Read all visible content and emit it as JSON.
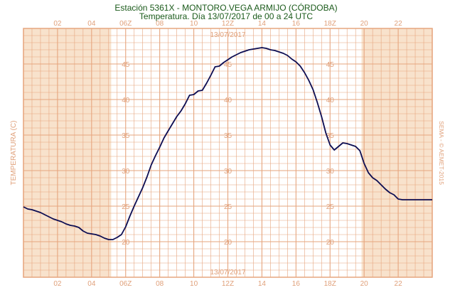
{
  "chart_data": {
    "type": "line",
    "title": "Estación 5361X - MONTORO.VEGA ARMIJO (CÓRDOBA)",
    "subtitle": "Temperatura. Día 13/07/2017 de 00 a 24 UTC",
    "ylabel": "TEMPERATURA (C)",
    "xlabel": "",
    "credit": "SEMA - © AEMET-2015",
    "date_label": "13/07/2017",
    "xlim": [
      0,
      24
    ],
    "ylim": [
      15,
      50
    ],
    "x_ticks": [
      2,
      4,
      6,
      8,
      10,
      12,
      14,
      16,
      18,
      20,
      22
    ],
    "x_tick_labels": [
      "02",
      "04",
      "06Z",
      "08",
      "10",
      "12Z",
      "14",
      "16",
      "18Z",
      "20",
      "22"
    ],
    "y_ticks": [
      20,
      25,
      30,
      35,
      40,
      45
    ],
    "y_tick_labels": [
      "20",
      "25",
      "30",
      "35",
      "40",
      "45"
    ],
    "y_label_columns_x": [
      6,
      12,
      18
    ],
    "night_bands": [
      [
        0,
        5.15
      ],
      [
        19.85,
        24
      ]
    ],
    "grid": true,
    "colors": {
      "series": "#0d0d52",
      "night_band": "#f8e2cc",
      "grid": "#e6a57e",
      "frame": "#e6a57e",
      "title": "#1a5a1a",
      "labels": "#e0a07a"
    },
    "series": [
      {
        "x": [
          0,
          0.25,
          0.5,
          0.75,
          1,
          1.25,
          1.5,
          1.75,
          2,
          2.25,
          2.5,
          2.75,
          3,
          3.25,
          3.5,
          3.75,
          4,
          4.25,
          4.5,
          4.75,
          5,
          5.25,
          5.5,
          5.75,
          6,
          6.25,
          6.5,
          6.75,
          7,
          7.25,
          7.5,
          7.75,
          8,
          8.25,
          8.5,
          8.75,
          9,
          9.25,
          9.5,
          9.75,
          10,
          10.25,
          10.5,
          10.75,
          11,
          11.25,
          11.5,
          11.75,
          12,
          12.25,
          12.5,
          12.75,
          13,
          13.25,
          13.5,
          13.75,
          14,
          14.25,
          14.5,
          14.75,
          15,
          15.25,
          15.5,
          15.75,
          16,
          16.25,
          16.5,
          16.75,
          17,
          17.25,
          17.5,
          17.75,
          18,
          18.25,
          18.5,
          18.75,
          19,
          19.25,
          19.5,
          19.75,
          20,
          20.25,
          20.5,
          20.75,
          21,
          21.25,
          21.5,
          21.75,
          22,
          22.25,
          22.5,
          22.75,
          23,
          23.25,
          23.5,
          23.75,
          24
        ],
        "values": [
          24.9,
          24.6,
          24.5,
          24.3,
          24.1,
          23.8,
          23.5,
          23.2,
          23,
          22.8,
          22.5,
          22.3,
          22.2,
          22,
          21.5,
          21.2,
          21.1,
          21,
          20.8,
          20.5,
          20.3,
          20.3,
          20.6,
          21,
          22.1,
          23.6,
          25,
          26.3,
          27.6,
          29.1,
          30.8,
          32.1,
          33.3,
          34.6,
          35.6,
          36.6,
          37.6,
          38.4,
          39.4,
          40.6,
          40.7,
          41.2,
          41.3,
          42.3,
          43.4,
          44.6,
          44.7,
          45.2,
          45.6,
          46.0,
          46.3,
          46.6,
          46.8,
          47.0,
          47.1,
          47.2,
          47.3,
          47.2,
          47.0,
          46.9,
          46.7,
          46.5,
          46.2,
          45.7,
          45.3,
          44.7,
          43.8,
          42.7,
          41.4,
          39.6,
          37.6,
          35.3,
          33.6,
          32.9,
          33.4,
          33.9,
          33.8,
          33.6,
          33.4,
          32.8,
          31.0,
          29.7,
          29.0,
          28.6,
          28.0,
          27.4,
          26.9,
          26.6,
          26.0,
          25.9,
          25.9,
          25.9,
          25.9,
          25.9,
          25.9,
          25.9,
          25.9
        ]
      }
    ]
  }
}
